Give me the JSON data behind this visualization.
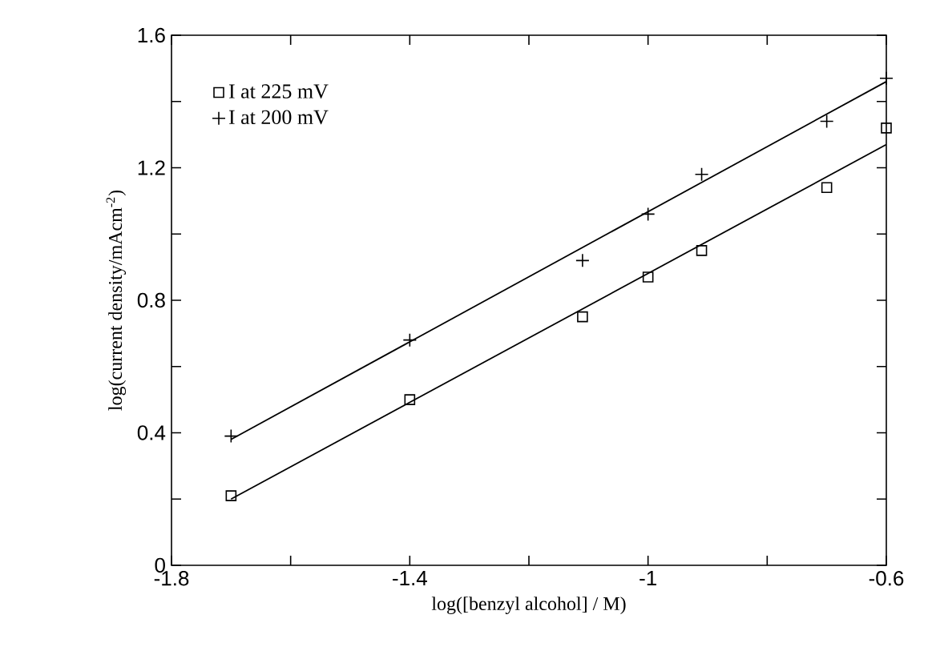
{
  "chart_data": {
    "type": "scatter",
    "xlabel": "log([benzyl alcohol] / M)",
    "ylabel": "log(current density/mAcm$^{-2}$)",
    "xlim": [
      -1.8,
      -0.6
    ],
    "ylim": [
      0,
      1.6
    ],
    "xticks": [
      -1.8,
      {
        "value": -1.6,
        "label": null
      },
      -1.4,
      {
        "value": -1.2,
        "label": null
      },
      -1,
      {
        "value": -0.8,
        "label": null
      },
      -0.6
    ],
    "yticks": [
      0,
      {
        "value": 0.2,
        "label": null
      },
      0.4,
      {
        "value": 0.6,
        "label": null
      },
      0.8,
      {
        "value": 1.0,
        "label": null
      },
      1.2,
      {
        "value": 1.4,
        "label": null
      },
      1.6
    ],
    "grid": false,
    "legend": "top left",
    "series": [
      {
        "name": "I at 225 mV",
        "marker": "square",
        "color": "#000000",
        "x": [
          -1.7,
          -1.4,
          -1.11,
          -1.0,
          -0.91,
          -0.7,
          -0.6
        ],
        "values": [
          0.21,
          0.5,
          0.75,
          0.87,
          0.95,
          1.14,
          1.32
        ]
      },
      {
        "name": "I at 200 mV",
        "marker": "cross",
        "color": "#000000",
        "x": [
          -1.7,
          -1.4,
          -1.11,
          -1.0,
          -0.91,
          -0.7,
          -0.6
        ],
        "values": [
          0.39,
          0.68,
          0.92,
          1.06,
          1.18,
          1.34,
          1.47
        ]
      },
      {
        "type": "line",
        "marker": "none",
        "color": "#000000",
        "x": [
          -1.7,
          -0.6
        ],
        "values": [
          0.2,
          1.27
        ]
      },
      {
        "type": "line",
        "marker": "none",
        "color": "#000000",
        "x": [
          -1.7,
          -0.6
        ],
        "values": [
          0.38,
          1.46
        ]
      }
    ]
  }
}
